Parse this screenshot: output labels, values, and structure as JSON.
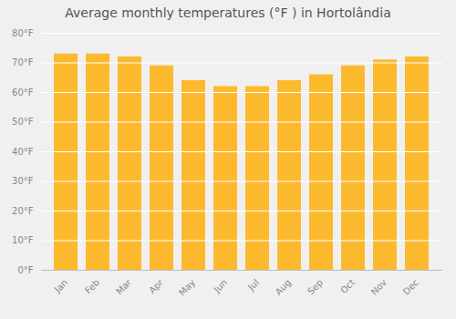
{
  "chart_data": {
    "type": "bar",
    "title": "Average monthly temperatures (°F ) in Hortolândia",
    "categories": [
      "Jan",
      "Feb",
      "Mar",
      "Apr",
      "May",
      "Jun",
      "Jul",
      "Aug",
      "Sep",
      "Oct",
      "Nov",
      "Dec"
    ],
    "values": [
      73,
      73,
      72,
      69,
      64,
      62,
      62,
      64,
      66,
      69,
      71,
      72
    ],
    "color": "#FDB92E",
    "ylim": [
      0,
      80
    ],
    "yticks": [
      {
        "value": 0,
        "label": "0°F"
      },
      {
        "value": 10,
        "label": "10°F"
      },
      {
        "value": 20,
        "label": "20°F"
      },
      {
        "value": 30,
        "label": "30°F"
      },
      {
        "value": 40,
        "label": "40°F"
      },
      {
        "value": 50,
        "label": "50°F"
      },
      {
        "value": 60,
        "label": "60°F"
      },
      {
        "value": 70,
        "label": "70°F"
      },
      {
        "value": 80,
        "label": "80°F"
      }
    ],
    "grid": true
  }
}
